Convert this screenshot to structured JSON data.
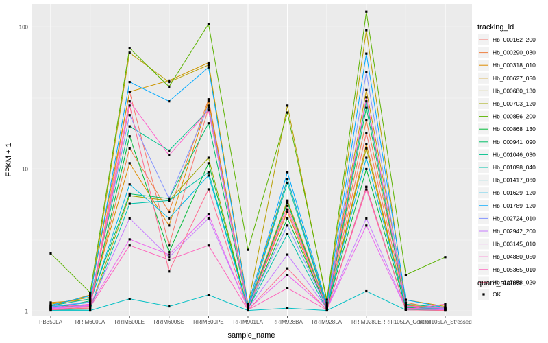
{
  "chart_data": {
    "type": "line",
    "xlabel": "sample_name",
    "ylabel": "FPKM + 1",
    "y_scale": "log10",
    "ylim": [
      0.93,
      145
    ],
    "y_ticks": [
      {
        "value": 1,
        "label": "1"
      },
      {
        "value": 10,
        "label": "10"
      },
      {
        "value": 100,
        "label": "100"
      }
    ],
    "categories": [
      "PB350LA",
      "RRIM600LA",
      "RRIM600LE",
      "RRIM600SE",
      "RRIM600PE",
      "RRIM901LA",
      "RRIM928BA",
      "RRIM928LA",
      "RRIM928LE",
      "RRIII105LA_Control",
      "RRIII105LA_Stressed"
    ],
    "grid": true,
    "legend": {
      "title": "tracking_id",
      "placement": "right"
    },
    "shape_legend": {
      "title": "quant_status",
      "entries": [
        {
          "label": "OK",
          "color": "#000000"
        }
      ]
    },
    "series": [
      {
        "name": "Hb_000162_200",
        "color": "#F8766D",
        "values": [
          1.1,
          1.08,
          35.0,
          2.9,
          27.0,
          1.05,
          5.5,
          1.05,
          18.0,
          1.1,
          1.05
        ]
      },
      {
        "name": "Hb_000290_030",
        "color": "#EE8043",
        "values": [
          1.05,
          1.12,
          14.0,
          5.0,
          31.0,
          1.08,
          6.0,
          1.08,
          22.0,
          1.15,
          1.02
        ]
      },
      {
        "name": "Hb_000318_010",
        "color": "#DE8C00",
        "values": [
          1.15,
          1.2,
          11.0,
          4.0,
          30.0,
          1.05,
          5.0,
          1.02,
          15.0,
          1.05,
          1.03
        ]
      },
      {
        "name": "Hb_000627_050",
        "color": "#CD9600",
        "values": [
          1.08,
          1.3,
          35.0,
          42.0,
          56.0,
          1.12,
          8.5,
          1.1,
          36.0,
          1.2,
          1.08
        ]
      },
      {
        "name": "Hb_000680_130",
        "color": "#B79F00",
        "values": [
          1.12,
          1.25,
          66.0,
          41.0,
          54.0,
          1.1,
          28.0,
          1.15,
          95.0,
          1.1,
          1.05
        ]
      },
      {
        "name": "Hb_000703_120",
        "color": "#9DA700",
        "values": [
          1.03,
          1.05,
          6.5,
          6.0,
          12.0,
          1.03,
          6.0,
          1.03,
          14.0,
          1.04,
          1.02
        ]
      },
      {
        "name": "Hb_000856_200",
        "color": "#5BB300",
        "values": [
          2.55,
          1.35,
          71.0,
          38.0,
          105.0,
          2.7,
          25.0,
          1.2,
          128.0,
          1.8,
          2.4
        ]
      },
      {
        "name": "Hb_000868_130",
        "color": "#00BA38",
        "values": [
          1.06,
          1.1,
          17.0,
          2.6,
          11.0,
          1.02,
          4.5,
          1.05,
          10.0,
          1.06,
          1.04
        ]
      },
      {
        "name": "Hb_000941_090",
        "color": "#00BE67",
        "values": [
          1.04,
          1.18,
          6.7,
          6.2,
          21.0,
          1.05,
          5.8,
          1.04,
          27.0,
          1.07,
          1.03
        ]
      },
      {
        "name": "Hb_001046_030",
        "color": "#00C08B",
        "values": [
          1.09,
          1.22,
          20.0,
          13.5,
          26.0,
          1.06,
          8.0,
          1.06,
          30.0,
          1.12,
          1.06
        ]
      },
      {
        "name": "Hb_001098_040",
        "color": "#00C1A9",
        "values": [
          1.02,
          1.03,
          5.7,
          6.0,
          9.5,
          1.03,
          3.5,
          1.02,
          7.5,
          1.03,
          1.02
        ]
      },
      {
        "name": "Hb_001417_060",
        "color": "#00BFC4",
        "values": [
          1.01,
          1.01,
          1.22,
          1.08,
          1.3,
          1.01,
          1.05,
          1.01,
          1.38,
          1.02,
          1.01
        ]
      },
      {
        "name": "Hb_001629_120",
        "color": "#00B8E7",
        "values": [
          1.07,
          1.15,
          7.8,
          4.5,
          9.0,
          1.04,
          8.5,
          1.07,
          12.0,
          1.08,
          1.05
        ]
      },
      {
        "name": "Hb_001789_120",
        "color": "#00A9FF",
        "values": [
          1.1,
          1.28,
          41.0,
          30.0,
          52.0,
          1.1,
          9.5,
          1.12,
          65.0,
          1.2,
          1.06
        ]
      },
      {
        "name": "Hb_002724_010",
        "color": "#8494FF",
        "values": [
          1.08,
          1.16,
          24.0,
          6.2,
          28.0,
          1.06,
          4.0,
          1.05,
          48.0,
          1.08,
          1.04
        ]
      },
      {
        "name": "Hb_002942_200",
        "color": "#C77CFF",
        "values": [
          1.05,
          1.1,
          4.5,
          2.4,
          4.5,
          1.04,
          2.5,
          1.04,
          4.5,
          1.05,
          1.03
        ]
      },
      {
        "name": "Hb_003145_010",
        "color": "#ED68ED",
        "values": [
          1.04,
          1.09,
          3.2,
          2.5,
          4.8,
          1.03,
          1.8,
          1.03,
          4.0,
          1.04,
          1.02
        ]
      },
      {
        "name": "Hb_004880_050",
        "color": "#FF61CC",
        "values": [
          1.06,
          1.12,
          30.0,
          12.5,
          26.0,
          1.05,
          5.2,
          1.06,
          32.0,
          1.09,
          1.05
        ]
      },
      {
        "name": "Hb_005365_010",
        "color": "#FF62BC",
        "values": [
          1.03,
          1.07,
          2.9,
          2.3,
          2.9,
          1.02,
          1.45,
          1.02,
          7.2,
          1.03,
          1.12
        ]
      },
      {
        "name": "Hb_017358_020",
        "color": "#FF6C91",
        "values": [
          1.02,
          1.05,
          28.0,
          1.9,
          7.2,
          1.02,
          2.0,
          1.02,
          7.5,
          1.02,
          1.01
        ]
      }
    ]
  }
}
